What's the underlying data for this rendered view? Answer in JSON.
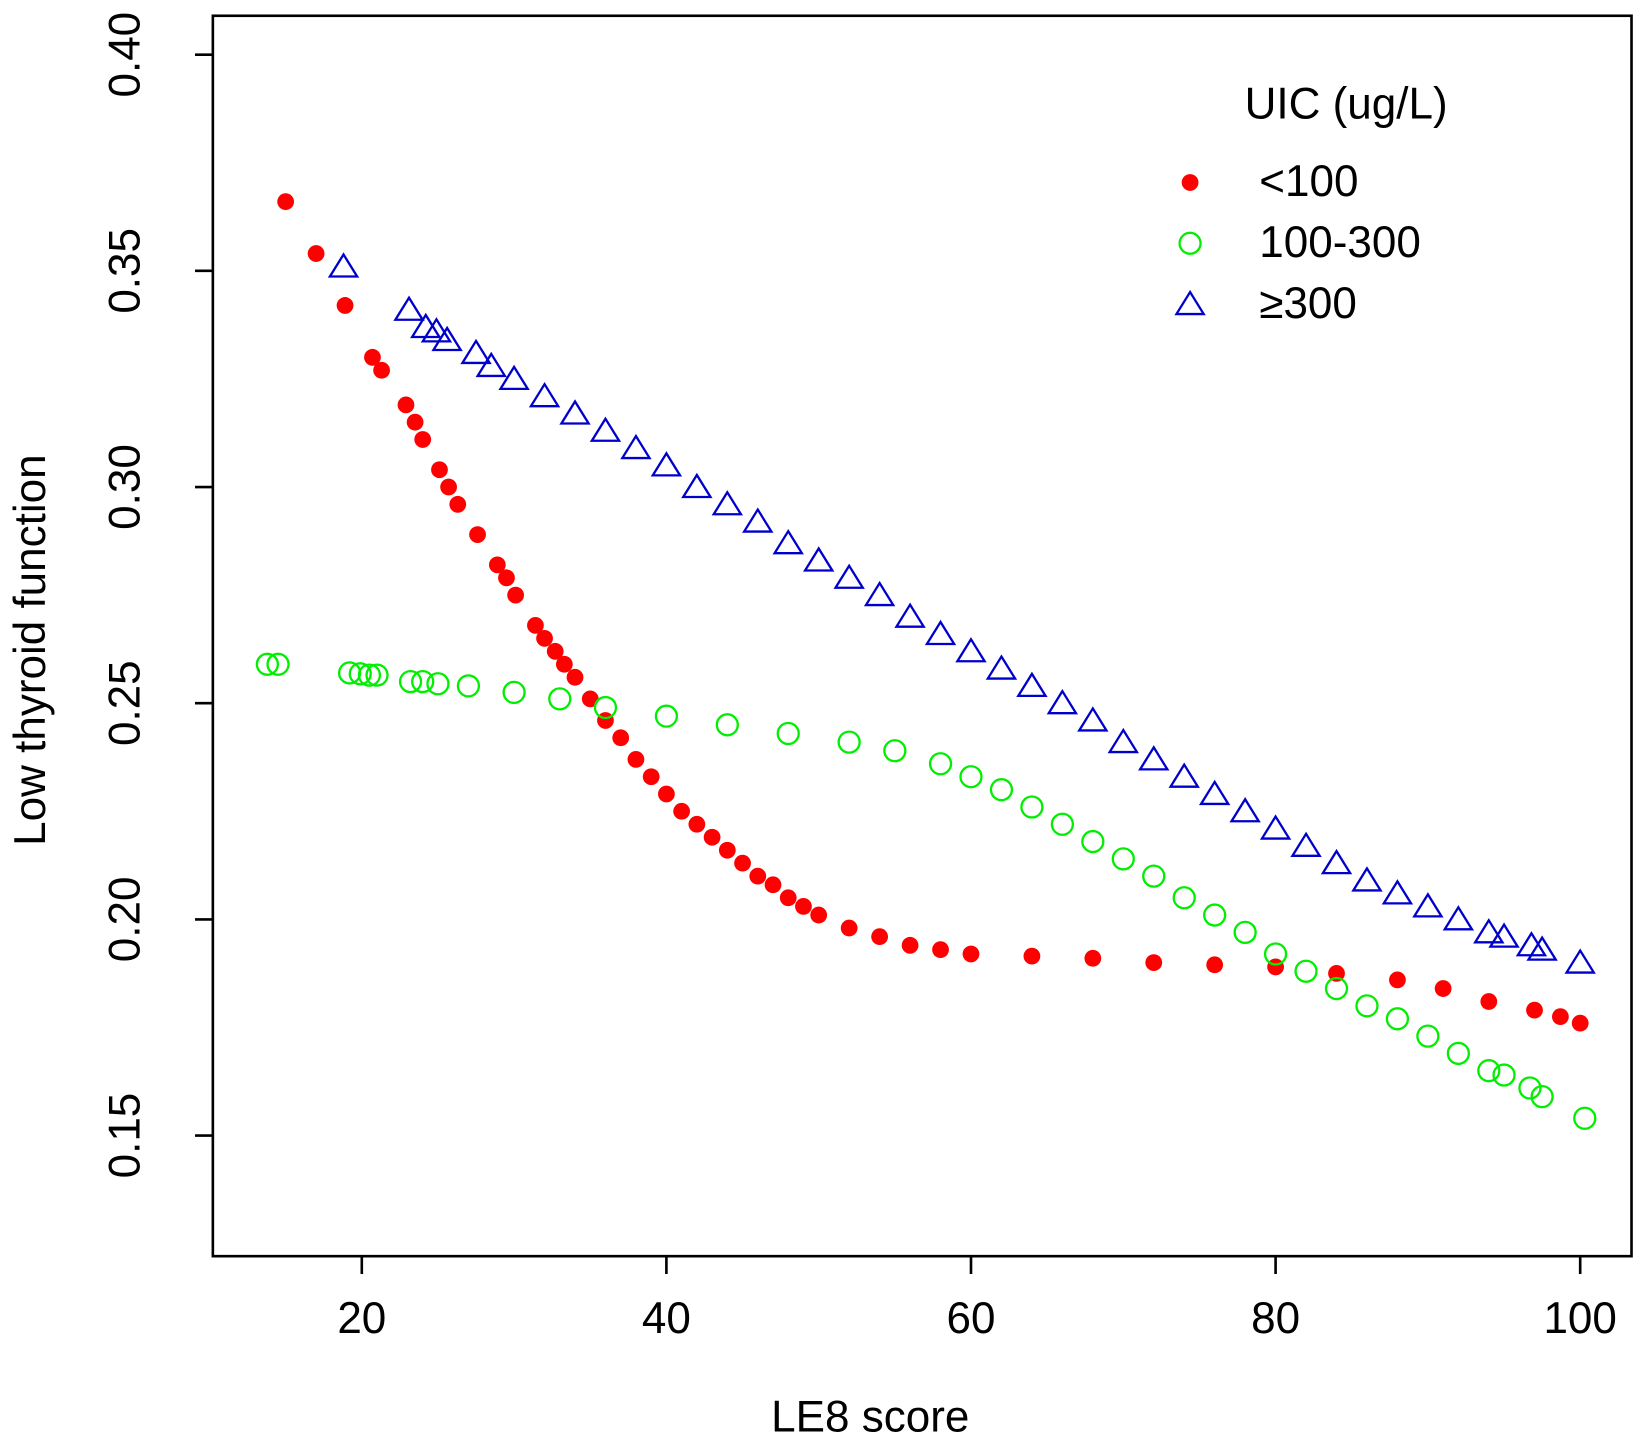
{
  "chart_data": {
    "type": "scatter",
    "xlabel": "LE8 score",
    "ylabel": "Low thyroid function",
    "xlim": [
      10.22,
      103.37
    ],
    "ylim": [
      0.1221,
      0.409
    ],
    "xticks": [
      20,
      40,
      60,
      80,
      100
    ],
    "yticks": [
      {
        "value": 0.15,
        "label": "0.15"
      },
      {
        "value": 0.2,
        "label": "0.20"
      },
      {
        "value": 0.25,
        "label": "0.25"
      },
      {
        "value": 0.3,
        "label": "0.30"
      },
      {
        "value": 0.35,
        "label": "0.35"
      },
      {
        "value": 0.4,
        "label": "0.40"
      }
    ],
    "grid": false,
    "legend_title": "UIC (ug/L)",
    "legend_position": "top-right",
    "series": [
      {
        "name": "<100",
        "color": "#ff0000",
        "marker": "filled-circle",
        "x": [
          15,
          17,
          18.9,
          20.7,
          21.3,
          22.9,
          23.5,
          24,
          25.1,
          25.7,
          26.3,
          27.6,
          28.9,
          29.5,
          30.1,
          31.4,
          32,
          32.7,
          33.3,
          34,
          35,
          36,
          37,
          38,
          39,
          40,
          41,
          42,
          43,
          44,
          45,
          46,
          47,
          48,
          49,
          50,
          52,
          54,
          56,
          58,
          60,
          64,
          68,
          72,
          76,
          80,
          84,
          88,
          91,
          94,
          97,
          98.7,
          100
        ],
        "values": [
          0.366,
          0.354,
          0.342,
          0.33,
          0.327,
          0.319,
          0.315,
          0.311,
          0.304,
          0.3,
          0.296,
          0.289,
          0.282,
          0.279,
          0.275,
          0.268,
          0.265,
          0.262,
          0.259,
          0.256,
          0.251,
          0.246,
          0.242,
          0.237,
          0.233,
          0.229,
          0.225,
          0.222,
          0.219,
          0.216,
          0.213,
          0.21,
          0.208,
          0.205,
          0.203,
          0.201,
          0.198,
          0.196,
          0.194,
          0.193,
          0.192,
          0.1915,
          0.191,
          0.19,
          0.1895,
          0.189,
          0.1875,
          0.186,
          0.184,
          0.181,
          0.179,
          0.1775,
          0.176
        ]
      },
      {
        "name": "100-300",
        "color": "#00ee00",
        "marker": "circle",
        "x": [
          13.8,
          14.5,
          19.2,
          19.9,
          20.5,
          21,
          23.2,
          24,
          25,
          27,
          30,
          33,
          36,
          40,
          44,
          48,
          52,
          55,
          58,
          60,
          62,
          64,
          66,
          68,
          70,
          72,
          74,
          76,
          78,
          80,
          82,
          84,
          86,
          88,
          90,
          92,
          94,
          95,
          96.7,
          97.5,
          100.3
        ],
        "values": [
          0.259,
          0.259,
          0.257,
          0.2568,
          0.2565,
          0.2565,
          0.255,
          0.255,
          0.2545,
          0.254,
          0.2525,
          0.251,
          0.249,
          0.247,
          0.245,
          0.243,
          0.241,
          0.239,
          0.236,
          0.233,
          0.23,
          0.226,
          0.222,
          0.218,
          0.214,
          0.21,
          0.205,
          0.201,
          0.197,
          0.192,
          0.188,
          0.184,
          0.18,
          0.177,
          0.173,
          0.169,
          0.165,
          0.164,
          0.161,
          0.159,
          0.154
        ]
      },
      {
        "name": "≥300",
        "color": "#0000cc",
        "marker": "triangle",
        "x": [
          18.8,
          23.1,
          24.2,
          24.9,
          25.6,
          27.5,
          28.5,
          30,
          32,
          34,
          36,
          38,
          40,
          42,
          44,
          46,
          48,
          50,
          52,
          54,
          56,
          58,
          60,
          62,
          64,
          66,
          68,
          70,
          72,
          74,
          76,
          78,
          80,
          82,
          84,
          86,
          88,
          90,
          92,
          94,
          95,
          96.8,
          97.5,
          100
        ],
        "values": [
          0.351,
          0.341,
          0.337,
          0.336,
          0.334,
          0.331,
          0.328,
          0.325,
          0.321,
          0.317,
          0.313,
          0.309,
          0.305,
          0.3,
          0.296,
          0.292,
          0.287,
          0.283,
          0.279,
          0.275,
          0.27,
          0.266,
          0.262,
          0.258,
          0.254,
          0.25,
          0.246,
          0.241,
          0.237,
          0.233,
          0.229,
          0.225,
          0.221,
          0.217,
          0.213,
          0.209,
          0.206,
          0.203,
          0.2,
          0.197,
          0.196,
          0.194,
          0.193,
          0.19
        ]
      }
    ]
  }
}
